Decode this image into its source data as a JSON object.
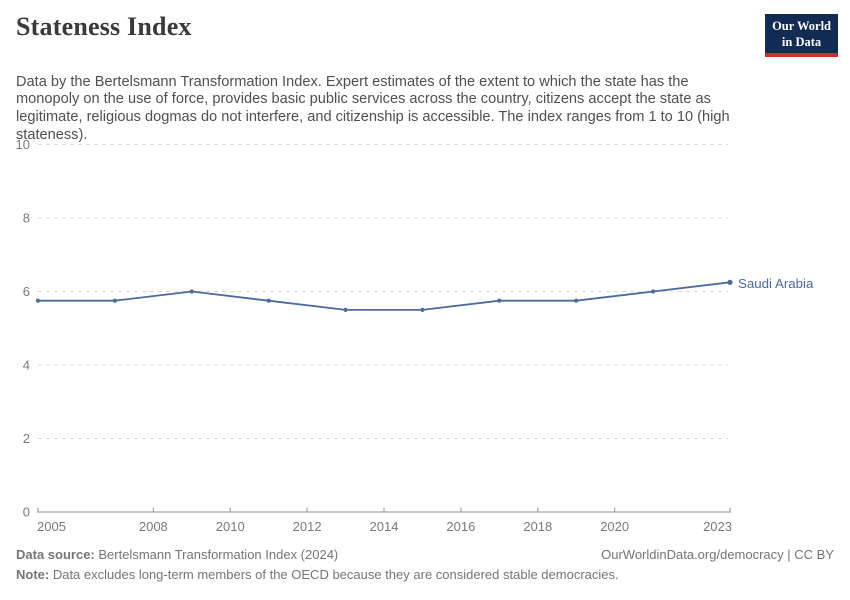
{
  "header": {
    "title": "Stateness Index",
    "subtitle": "Data by the Bertelsmann Transformation Index. Expert estimates of the extent to which the state has the monopoly on the use of force, provides basic public services across the country, citizens accept the state as legitimate, religious dogmas do not interfere, and citizenship is accessible. The index ranges from 1 to 10 (high stateness).",
    "logo": {
      "line1": "Our World",
      "line2": "in Data"
    }
  },
  "chart_data": {
    "type": "line",
    "title": "Stateness Index",
    "x": [
      2005,
      2007,
      2009,
      2011,
      2013,
      2015,
      2017,
      2019,
      2021,
      2023
    ],
    "series": [
      {
        "name": "Saudi Arabia",
        "values": [
          5.75,
          5.75,
          6,
          5.75,
          5.5,
          5.5,
          5.75,
          5.75,
          6,
          6.25
        ],
        "color": "#4C6A9C"
      }
    ],
    "ylim": [
      0,
      10
    ],
    "yticks": [
      0,
      2,
      4,
      6,
      8,
      10
    ],
    "xticks": [
      2005,
      2008,
      2010,
      2012,
      2014,
      2016,
      2018,
      2020,
      2023
    ],
    "grid": "horizontal-dashed",
    "legend": "end-of-line-label"
  },
  "footer": {
    "source_label": "Data source:",
    "source_value": " Bertelsmann Transformation Index (2024)",
    "note_label": "Note:",
    "note_value": " Data excludes long-term members of the OECD because they are considered stable democracies.",
    "link": "OurWorldinData.org/democracy | CC BY"
  },
  "colors": {
    "accent_blue": "#4C6A9C",
    "title_text": "#3a3a3a",
    "subtitle_text": "#4f4f4f",
    "axis_text": "#7a7a7a",
    "grid_line": "#d9d9d9",
    "axis_line": "#a3a3a3",
    "footer_text": "#757575",
    "logo_bg": "#122b52",
    "logo_red": "#cb3130"
  }
}
